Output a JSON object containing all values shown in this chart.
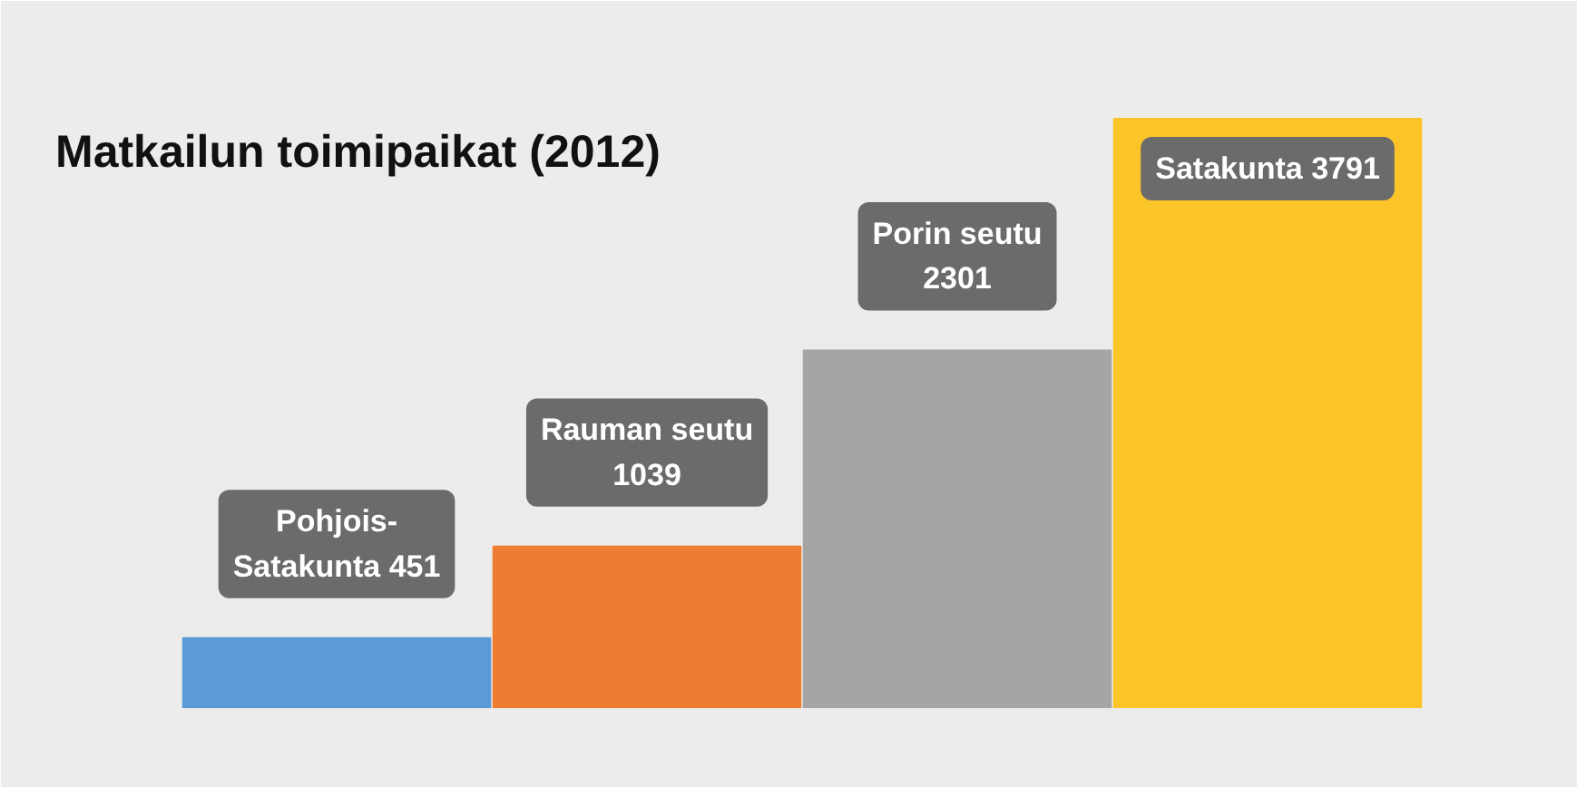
{
  "chart_data": {
    "type": "bar",
    "title": "Matkailun toimipaikat (2012)",
    "categories": [
      null,
      null,
      null,
      null
    ],
    "values": [
      451,
      1039,
      2301,
      3791
    ],
    "colors": [
      "#5b9bd5",
      "#ed7d31",
      "#a5a5a5",
      "#fbc52a"
    ],
    "value_labels": [
      "Pohjois-\nSatakunta 451",
      "Rauman seutu\n1039",
      "Porin seutu\n2301",
      "Satakunta 3791"
    ],
    "grid": false
  }
}
